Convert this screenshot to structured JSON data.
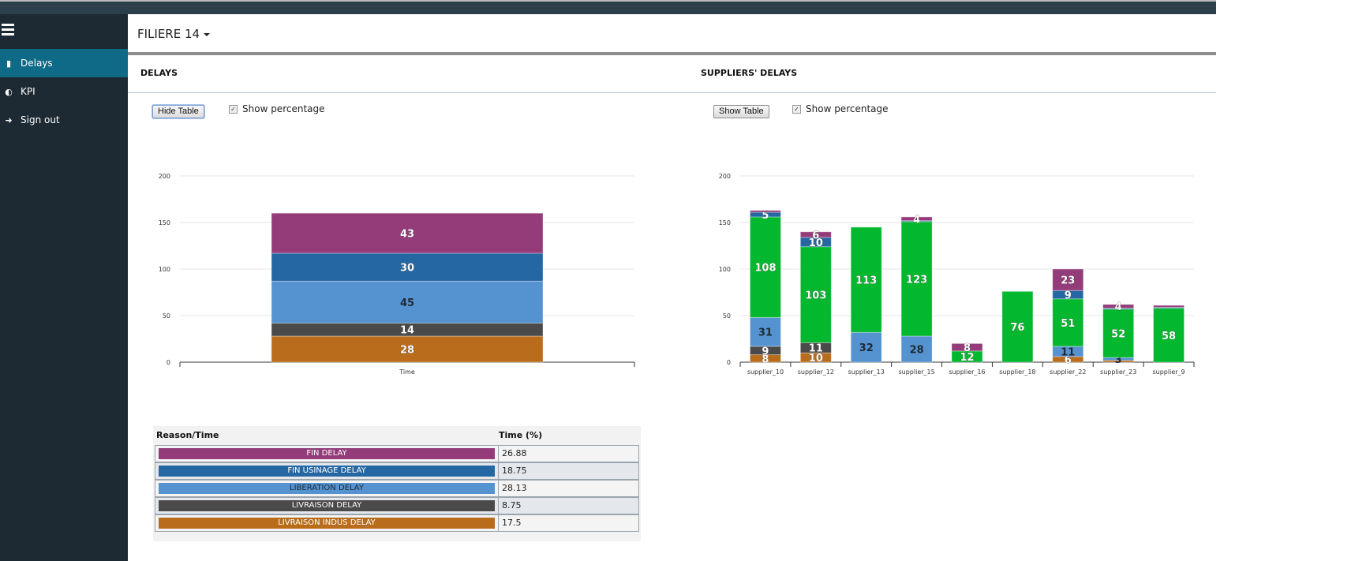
{
  "header": {
    "title": "FILIERE 14"
  },
  "sidebar": {
    "items": [
      {
        "label": "Delays",
        "icon": "document-icon",
        "active": true
      },
      {
        "label": "KPI",
        "icon": "dashboard-icon",
        "active": false
      },
      {
        "label": "Sign out",
        "icon": "sign-out-icon",
        "active": false
      }
    ]
  },
  "delays": {
    "title": "DELAYS",
    "button": "Hide Table",
    "checkbox_label": "Show percentage",
    "checkbox_checked": true
  },
  "suppliers": {
    "title": "SUPPLIERS' DELAYS",
    "button": "Show Table",
    "checkbox_label": "Show percentage",
    "checkbox_checked": true
  },
  "colors": {
    "FIN DELAY": "#943b7a",
    "FIN USINAGE DELAY": "#2567a3",
    "LIBERATION DELAY": "#5593d0",
    "LIVRAISON DELAY": "#4a4a4a",
    "LIVRAISON INDUS DELAY": "#b86c1c",
    "SUPPLIER DELAY": "#03b82e"
  },
  "table": {
    "headers": [
      "Reason/Time",
      "Time (%)"
    ],
    "rows": [
      {
        "reason": "FIN DELAY",
        "value": "26.88"
      },
      {
        "reason": "FIN USINAGE DELAY",
        "value": "18.75"
      },
      {
        "reason": "LIBERATION DELAY",
        "value": "28.13"
      },
      {
        "reason": "LIVRAISON DELAY",
        "value": "8.75"
      },
      {
        "reason": "LIVRAISON INDUS DELAY",
        "value": "17.5"
      }
    ]
  },
  "chart_data": [
    {
      "type": "bar",
      "stacked": true,
      "title": "DELAYS",
      "categories": [
        "Time"
      ],
      "ylim": [
        0,
        200
      ],
      "yticks": [
        0,
        50,
        100,
        150,
        200
      ],
      "grid": true,
      "series": [
        {
          "name": "LIVRAISON INDUS DELAY",
          "values": [
            28
          ]
        },
        {
          "name": "LIVRAISON DELAY",
          "values": [
            14
          ]
        },
        {
          "name": "LIBERATION DELAY",
          "values": [
            45
          ]
        },
        {
          "name": "FIN USINAGE DELAY",
          "values": [
            30
          ]
        },
        {
          "name": "FIN DELAY",
          "values": [
            43
          ]
        }
      ]
    },
    {
      "type": "bar",
      "stacked": true,
      "title": "SUPPLIERS' DELAYS",
      "categories": [
        "supplier_10",
        "supplier_12",
        "supplier_13",
        "supplier_15",
        "supplier_16",
        "supplier_18",
        "supplier_22",
        "supplier_23",
        "supplier_9"
      ],
      "ylim": [
        0,
        200
      ],
      "yticks": [
        0,
        50,
        100,
        150,
        200
      ],
      "grid": true,
      "series": [
        {
          "name": "LIVRAISON INDUS DELAY",
          "values": [
            8,
            10,
            0,
            0,
            0,
            0,
            6,
            2,
            0
          ]
        },
        {
          "name": "LIVRAISON DELAY",
          "values": [
            9,
            11,
            0,
            0,
            0,
            0,
            0,
            0,
            0
          ]
        },
        {
          "name": "LIBERATION DELAY",
          "values": [
            31,
            0,
            32,
            28,
            0,
            0,
            11,
            3,
            0
          ]
        },
        {
          "name": "SUPPLIER DELAY",
          "values": [
            108,
            103,
            113,
            123,
            12,
            76,
            51,
            52,
            58
          ]
        },
        {
          "name": "FIN USINAGE DELAY",
          "values": [
            5,
            10,
            0,
            1,
            0,
            0,
            9,
            1,
            1
          ]
        },
        {
          "name": "FIN DELAY",
          "values": [
            2,
            6,
            0,
            4,
            8,
            0,
            23,
            4,
            2
          ]
        }
      ]
    }
  ]
}
